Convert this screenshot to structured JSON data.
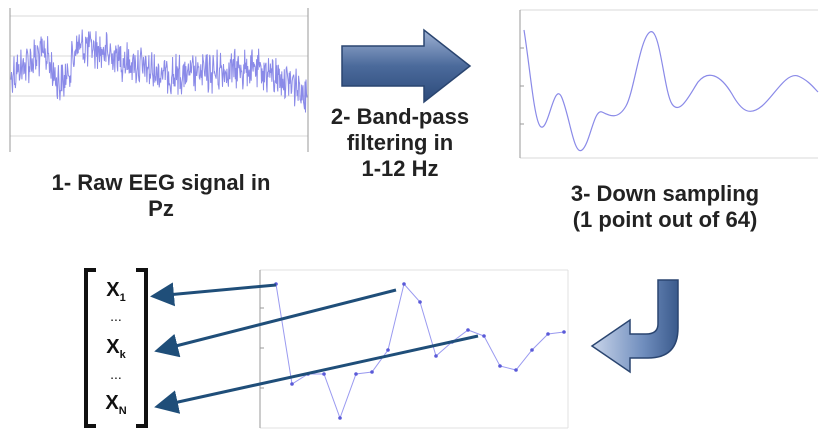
{
  "steps": {
    "raw": {
      "line1": "1- Raw EEG signal in",
      "line2": "Pz"
    },
    "filter": {
      "line1": "2- Band-pass",
      "line2": "filtering in",
      "line3": "1-12 Hz"
    },
    "downsample": {
      "line1": "3- Down sampling",
      "line2": "(1 point out of 64)"
    }
  },
  "vector": {
    "first": {
      "base": "X",
      "sub": "1"
    },
    "middle": {
      "base": "X",
      "sub": "k"
    },
    "last": {
      "base": "X",
      "sub": "N"
    },
    "dots": "..."
  },
  "colors": {
    "signal": "#8a8ae8",
    "arrow_fill": "#4b6a9b",
    "arrow_dark": "#1f3b68",
    "connector": "#1f4e79",
    "grid": "#d9d9d9"
  },
  "chart_data": [
    {
      "type": "line",
      "subject": "raw EEG signal"
    },
    {
      "type": "line",
      "subject": "filtered signal"
    },
    {
      "type": "line",
      "subject": "downsampled points",
      "markers": true
    }
  ]
}
